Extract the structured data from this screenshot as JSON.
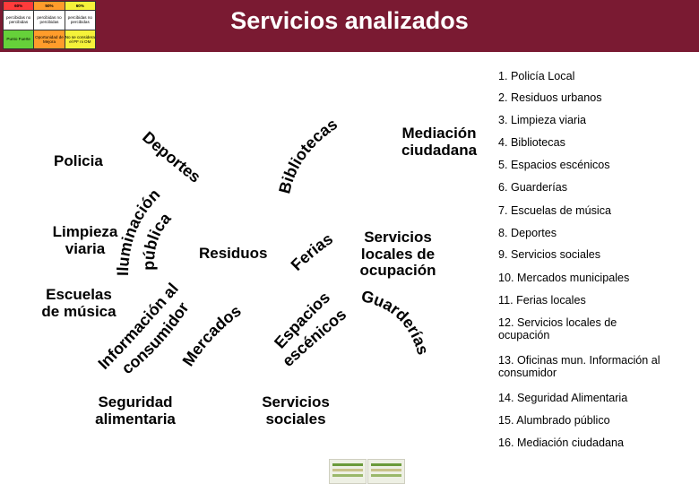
{
  "title": "Servicios analizados",
  "legend": {
    "headers": [
      "60%",
      "50%",
      "60%"
    ],
    "header_colors": [
      "#ff3b3b",
      "#ff9c2b",
      "#f5f23a"
    ],
    "row1": [
      "percibidas no percibidas",
      "percibidas no percibidas",
      "percibidas no percibidas"
    ],
    "row2": [
      "Punto Fuerte",
      "Oportunidad de Mejora",
      "No se considera el PF ni OM"
    ],
    "row2_colors": [
      "#66d13a",
      "#ff9c2b",
      "#f5f23a"
    ]
  },
  "diagram": {
    "labels": {
      "policia": "Policia",
      "limpieza": [
        "Limpieza",
        "viaria"
      ],
      "escuelas": [
        "Escuelas",
        "de música"
      ],
      "seguridad": [
        "Seguridad",
        "alimentaria"
      ],
      "residuos": "Residuos",
      "mediacion": [
        "Mediación",
        "ciudadana"
      ],
      "servicios_locales": [
        "Servicios",
        "locales de",
        "ocupación"
      ],
      "servicios_sociales": [
        "Servicios",
        "sociales"
      ]
    },
    "arcs": {
      "deportes": "Deportes",
      "bibliotecas": "Bibliotecas",
      "iluminacion": "Iluminación",
      "publica": "pública",
      "informacion": "Información al",
      "consumidor": "consumidor",
      "mercados": "Mercados",
      "ferias": "Ferias",
      "espacios": "Espacios",
      "escenicos": "escénicos",
      "guarderias": "Guarderías"
    }
  },
  "services_list": [
    "1. Policía Local",
    "2. Residuos urbanos",
    "3. Limpieza viaria",
    "4. Bibliotecas",
    "5. Espacios escénicos",
    "6. Guarderías",
    "7. Escuelas de música",
    "8. Deportes",
    "9. Servicios sociales",
    "10. Mercados municipales",
    "11. Ferias locales",
    "12. Servicios  locales de ocupación",
    "13. Oficinas mun. Información al consumidor",
    "14. Seguridad Alimentaria",
    "15. Alumbrado público",
    "16. Mediación ciudadana"
  ]
}
